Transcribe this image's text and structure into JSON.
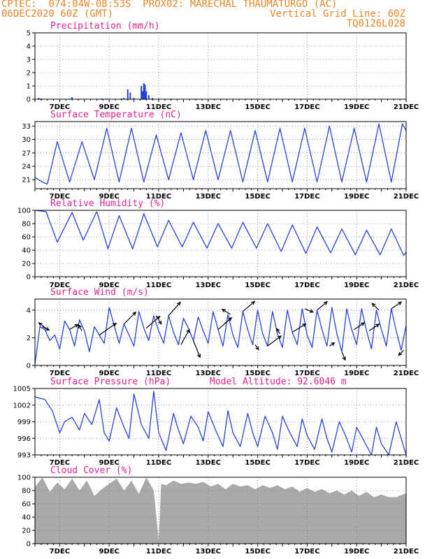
{
  "header": {
    "line1_left": "CPTEC:  074:04W-08:53S  PROX02: MARECHAL THAUMATURGO (AC)",
    "line2_left": "06DEC2020 60Z (GMT)",
    "line2_right": "Vertical Grid Line: 60Z",
    "line3_right": "TQ0126L028"
  },
  "colors": {
    "header": "#e8862a",
    "title": "#e4238e",
    "line": "#2a3fd8",
    "cloud": "#a9a9a9",
    "arrow": "#000000"
  },
  "x_axis": {
    "start_day": 6.0,
    "end_day": 21.0,
    "date_ticks": [
      {
        "day": 7,
        "label": "7DEC"
      },
      {
        "day": 9,
        "label": "9DEC"
      },
      {
        "day": 11,
        "label": "11DEC"
      },
      {
        "day": 13,
        "label": "13DEC"
      },
      {
        "day": 15,
        "label": "15DEC"
      },
      {
        "day": 17,
        "label": "17DEC"
      },
      {
        "day": 19,
        "label": "19DEC"
      },
      {
        "day": 21,
        "label": "21DEC"
      }
    ]
  },
  "chart_data": [
    {
      "id": "precip",
      "type": "bar",
      "title": "Precipitation (mm/h)",
      "ylim": [
        0,
        5
      ],
      "yticks": [
        0,
        1,
        2,
        3,
        4,
        5
      ],
      "grid": true,
      "x": [
        6.15,
        6.25,
        7.4,
        7.5,
        8.7,
        8.9,
        9.5,
        9.6,
        9.75,
        9.85,
        10.0,
        10.3,
        10.35,
        10.4,
        10.45,
        10.5,
        10.6,
        10.75,
        11.0,
        11.5,
        12.5,
        13.6,
        15.5,
        17.3,
        18.2,
        19.6
      ],
      "values": [
        0.1,
        0.05,
        0.05,
        0.15,
        0.05,
        0.05,
        0.05,
        0.1,
        0.75,
        0.5,
        0.1,
        1.0,
        0.6,
        1.2,
        1.1,
        0.6,
        0.3,
        0.1,
        0.05,
        0.05,
        0.03,
        0.03,
        0.03,
        0.03,
        0.03,
        0.03
      ]
    },
    {
      "id": "temp",
      "type": "line",
      "title": "Surface Temperature (nC)",
      "ylim": [
        19,
        34
      ],
      "yticks": [
        21,
        24,
        27,
        30,
        33
      ],
      "grid": true,
      "x": [
        6.0,
        6.3,
        6.5,
        6.9,
        7.4,
        7.9,
        8.4,
        8.9,
        9.4,
        9.9,
        10.4,
        10.9,
        11.4,
        11.9,
        12.4,
        12.9,
        13.4,
        13.9,
        14.4,
        14.9,
        15.4,
        15.9,
        16.4,
        16.9,
        17.4,
        17.9,
        18.4,
        18.9,
        19.4,
        19.9,
        20.4,
        20.85,
        21.0
      ],
      "values": [
        21.5,
        20.5,
        20.0,
        29.5,
        20.5,
        29.5,
        21.0,
        32.5,
        20.5,
        32.5,
        20.5,
        31.0,
        21.0,
        31.5,
        21.0,
        32.0,
        21.0,
        32.0,
        20.5,
        32.0,
        20.5,
        32.5,
        20.5,
        32.5,
        20.5,
        33.0,
        20.5,
        32.5,
        20.5,
        33.5,
        20.5,
        33.5,
        32.0
      ]
    },
    {
      "id": "rh",
      "type": "line",
      "title": "Relative Humidity (%)",
      "ylim": [
        0,
        100
      ],
      "yticks": [
        0,
        20,
        40,
        60,
        80,
        100
      ],
      "grid": true,
      "x": [
        6.0,
        6.45,
        6.9,
        7.5,
        7.95,
        8.5,
        8.95,
        9.4,
        9.95,
        10.4,
        10.95,
        11.4,
        11.95,
        12.4,
        12.95,
        13.4,
        13.95,
        14.4,
        14.95,
        15.4,
        15.95,
        16.4,
        16.95,
        17.4,
        17.95,
        18.4,
        18.95,
        19.4,
        19.95,
        20.4,
        20.9,
        21.0
      ],
      "values": [
        100,
        98,
        52,
        97,
        55,
        98,
        42,
        92,
        42,
        95,
        45,
        85,
        45,
        82,
        43,
        80,
        43,
        82,
        43,
        80,
        38,
        78,
        35,
        75,
        36,
        72,
        33,
        70,
        33,
        72,
        32,
        37
      ]
    },
    {
      "id": "wind",
      "type": "line",
      "title": "Surface Wind (m/s)",
      "ylim": [
        0,
        4.8
      ],
      "yticks": [
        0,
        2,
        4
      ],
      "grid": true,
      "x": [
        6.0,
        6.2,
        6.4,
        6.6,
        6.8,
        7.0,
        7.2,
        7.4,
        7.6,
        7.8,
        8.0,
        8.2,
        8.4,
        8.6,
        8.8,
        9.0,
        9.2,
        9.4,
        9.6,
        9.8,
        10.0,
        10.2,
        10.4,
        10.6,
        10.8,
        11.0,
        11.2,
        11.4,
        11.6,
        11.8,
        12.0,
        12.2,
        12.4,
        12.6,
        12.8,
        13.0,
        13.2,
        13.4,
        13.6,
        13.8,
        14.0,
        14.2,
        14.4,
        14.6,
        14.8,
        15.0,
        15.2,
        15.4,
        15.6,
        15.8,
        16.0,
        16.2,
        16.4,
        16.6,
        16.8,
        17.0,
        17.2,
        17.4,
        17.6,
        17.8,
        18.0,
        18.2,
        18.4,
        18.6,
        18.8,
        19.0,
        19.2,
        19.4,
        19.6,
        19.8,
        20.0,
        20.2,
        20.4,
        20.6,
        20.8,
        21.0
      ],
      "values": [
        0.1,
        2.8,
        2.6,
        1.8,
        2.2,
        1.2,
        3.2,
        2.6,
        1.4,
        3.3,
        2.5,
        1.0,
        2.8,
        2.2,
        1.6,
        4.2,
        2.9,
        1.6,
        3.0,
        2.2,
        1.4,
        3.9,
        2.7,
        1.8,
        3.6,
        2.5,
        1.6,
        3.6,
        2.4,
        1.5,
        3.4,
        2.7,
        1.8,
        3.5,
        2.5,
        1.6,
        3.9,
        2.6,
        1.4,
        3.7,
        2.2,
        1.3,
        3.9,
        2.6,
        1.5,
        4.0,
        2.3,
        1.4,
        3.9,
        2.3,
        1.3,
        4.0,
        2.4,
        1.5,
        4.1,
        2.2,
        1.3,
        4.0,
        2.6,
        1.4,
        4.2,
        2.3,
        1.0,
        4.1,
        2.6,
        1.5,
        4.1,
        2.5,
        1.2,
        4.0,
        2.6,
        1.4,
        4.1,
        2.5,
        1.1,
        2.9
      ],
      "arrows": [
        {
          "day": 6.3,
          "u": 0.4,
          "v": -0.2
        },
        {
          "day": 6.5,
          "u": -0.5,
          "v": 0.4
        },
        {
          "day": 7.4,
          "u": 0.5,
          "v": 0.3
        },
        {
          "day": 7.9,
          "u": -0.2,
          "v": 0.35
        },
        {
          "day": 8.6,
          "u": 1.0,
          "v": 0.7
        },
        {
          "day": 9.6,
          "u": 0.7,
          "v": 0.7
        },
        {
          "day": 10.5,
          "u": 0.8,
          "v": 0.7
        },
        {
          "day": 10.9,
          "u": 0.3,
          "v": -0.5
        },
        {
          "day": 11.4,
          "u": 0.7,
          "v": 0.8
        },
        {
          "day": 11.9,
          "u": 0.5,
          "v": 0.9
        },
        {
          "day": 12.4,
          "u": 0.4,
          "v": -1.0
        },
        {
          "day": 13.4,
          "u": 0.8,
          "v": 0.7
        },
        {
          "day": 13.9,
          "u": -0.5,
          "v": 0.3
        },
        {
          "day": 14.4,
          "u": 0.7,
          "v": 0.6
        },
        {
          "day": 14.9,
          "u": 0.2,
          "v": -0.3
        },
        {
          "day": 15.4,
          "u": 0.8,
          "v": 0.6
        },
        {
          "day": 15.9,
          "u": -0.2,
          "v": 0.3
        },
        {
          "day": 16.4,
          "u": 0.8,
          "v": 0.5
        },
        {
          "day": 16.9,
          "u": 0.5,
          "v": -0.2
        },
        {
          "day": 17.4,
          "u": 0.6,
          "v": 0.5
        },
        {
          "day": 17.9,
          "u": 0.3,
          "v": 0.2
        },
        {
          "day": 18.4,
          "u": 0.2,
          "v": -0.5
        },
        {
          "day": 18.9,
          "u": 0.6,
          "v": 0.4
        },
        {
          "day": 19.5,
          "u": 0.6,
          "v": 0.4
        },
        {
          "day": 19.9,
          "u": -0.4,
          "v": 0.4
        },
        {
          "day": 20.4,
          "u": 0.6,
          "v": 0.4
        },
        {
          "day": 20.9,
          "u": -0.3,
          "v": -0.3
        }
      ]
    },
    {
      "id": "pres",
      "type": "line",
      "title": "Surface Pressure (hPa)",
      "annotation": "Model Altitude: 92.6046 m",
      "ylim": [
        993,
        1005
      ],
      "yticks": [
        993,
        996,
        999,
        1002,
        1005
      ],
      "grid": true,
      "x": [
        6.0,
        6.4,
        6.7,
        7.0,
        7.2,
        7.5,
        7.8,
        8.0,
        8.3,
        8.6,
        8.8,
        9.0,
        9.3,
        9.6,
        9.8,
        10.0,
        10.3,
        10.6,
        10.8,
        11.0,
        11.3,
        11.6,
        11.8,
        12.0,
        12.3,
        12.6,
        12.8,
        13.0,
        13.3,
        13.6,
        13.8,
        14.0,
        14.3,
        14.6,
        14.8,
        15.0,
        15.3,
        15.6,
        15.8,
        16.0,
        16.3,
        16.6,
        16.8,
        17.0,
        17.3,
        17.6,
        17.8,
        18.0,
        18.3,
        18.6,
        18.8,
        19.0,
        19.3,
        19.6,
        19.8,
        20.0,
        20.3,
        20.6,
        20.8,
        21.0
      ],
      "values": [
        1003.5,
        1003.0,
        1001.0,
        997.0,
        999.0,
        999.8,
        997.5,
        1000.5,
        998.5,
        1003.0,
        997.0,
        995.5,
        1001.5,
        998.0,
        996.0,
        1004.0,
        998.5,
        996.0,
        1004.5,
        997.0,
        993.8,
        1000.5,
        997.5,
        995.0,
        1000.0,
        998.0,
        995.5,
        1000.8,
        997.5,
        994.5,
        1001.0,
        997.0,
        994.5,
        1000.5,
        997.0,
        994.5,
        1000.0,
        997.0,
        994.0,
        1000.0,
        997.0,
        994.5,
        999.5,
        996.5,
        994.0,
        999.5,
        996.0,
        993.5,
        999.0,
        996.0,
        993.5,
        998.0,
        995.5,
        993.0,
        998.0,
        995.0,
        993.0,
        999.0,
        996.0,
        993.0
      ]
    },
    {
      "id": "cloud",
      "type": "area",
      "title": "Cloud Cover (%)",
      "ylim": [
        0,
        100
      ],
      "yticks": [
        0,
        20,
        40,
        60,
        80,
        100
      ],
      "grid": true,
      "x": [
        6.0,
        6.3,
        6.6,
        6.9,
        7.2,
        7.5,
        7.8,
        8.1,
        8.4,
        8.7,
        9.0,
        9.3,
        9.6,
        9.9,
        10.2,
        10.5,
        10.8,
        11.0,
        11.1,
        11.3,
        11.6,
        11.9,
        12.2,
        12.5,
        12.8,
        13.1,
        13.4,
        13.7,
        14.0,
        14.3,
        14.6,
        14.9,
        15.2,
        15.5,
        15.8,
        16.1,
        16.4,
        16.7,
        17.0,
        17.3,
        17.6,
        17.9,
        18.2,
        18.5,
        18.8,
        19.1,
        19.4,
        19.7,
        20.0,
        20.3,
        20.6,
        21.0
      ],
      "values": [
        85,
        100,
        78,
        92,
        82,
        98,
        80,
        95,
        72,
        82,
        90,
        98,
        80,
        95,
        75,
        100,
        80,
        5,
        90,
        88,
        95,
        90,
        92,
        90,
        93,
        86,
        90,
        82,
        90,
        86,
        88,
        82,
        88,
        84,
        88,
        82,
        86,
        78,
        84,
        78,
        82,
        76,
        80,
        74,
        80,
        72,
        78,
        70,
        74,
        70,
        70,
        76
      ]
    }
  ]
}
